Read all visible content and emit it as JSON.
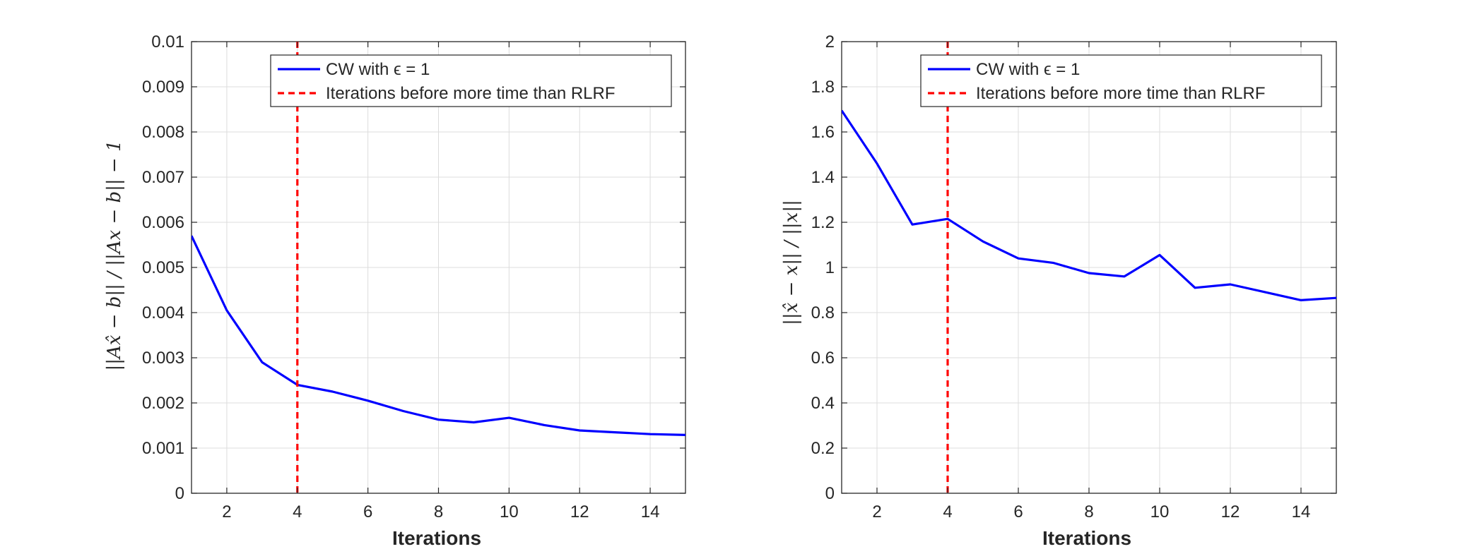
{
  "chart_data": [
    {
      "type": "line",
      "xlabel": "Iterations",
      "ylabel": "||Ax̂ − b|| / ||Ax − b|| − 1",
      "xlim": [
        1,
        15
      ],
      "ylim": [
        0,
        0.01
      ],
      "xticks": [
        2,
        4,
        6,
        8,
        10,
        12,
        14
      ],
      "yticks": [
        0,
        0.001,
        0.002,
        0.003,
        0.004,
        0.005,
        0.006,
        0.007,
        0.008,
        0.009,
        0.01
      ],
      "ytick_labels": [
        "0",
        "0.001",
        "0.002",
        "0.003",
        "0.004",
        "0.005",
        "0.006",
        "0.007",
        "0.008",
        "0.009",
        "0.01"
      ],
      "grid": true,
      "legend_position": "top-right",
      "series": [
        {
          "name": "CW with ϵ = 1",
          "color": "#0000ff",
          "style": "solid",
          "x": [
            1,
            2,
            3,
            4,
            5,
            6,
            7,
            8,
            9,
            10,
            11,
            12,
            13,
            14,
            15
          ],
          "y": [
            0.0057,
            0.00405,
            0.0029,
            0.0024,
            0.00225,
            0.00205,
            0.00182,
            0.00163,
            0.00157,
            0.00167,
            0.00151,
            0.00139,
            0.00135,
            0.00131,
            0.00129
          ]
        }
      ],
      "vlines": [
        {
          "name": "Iterations before more time than RLRF",
          "x": 4,
          "color": "#ff0000",
          "style": "dashed"
        }
      ]
    },
    {
      "type": "line",
      "xlabel": "Iterations",
      "ylabel": "||x̂ − x|| / ||x||",
      "xlim": [
        1,
        15
      ],
      "ylim": [
        0,
        2
      ],
      "xticks": [
        2,
        4,
        6,
        8,
        10,
        12,
        14
      ],
      "yticks": [
        0,
        0.2,
        0.4,
        0.6,
        0.8,
        1,
        1.2,
        1.4,
        1.6,
        1.8,
        2
      ],
      "ytick_labels": [
        "0",
        "0.2",
        "0.4",
        "0.6",
        "0.8",
        "1",
        "1.2",
        "1.4",
        "1.6",
        "1.8",
        "2"
      ],
      "grid": true,
      "legend_position": "top-right",
      "series": [
        {
          "name": "CW with ϵ = 1",
          "color": "#0000ff",
          "style": "solid",
          "x": [
            1,
            2,
            3,
            4,
            5,
            6,
            7,
            8,
            9,
            10,
            11,
            12,
            13,
            14,
            15
          ],
          "y": [
            1.695,
            1.46,
            1.19,
            1.215,
            1.115,
            1.04,
            1.02,
            0.975,
            0.96,
            1.055,
            0.91,
            0.925,
            0.89,
            0.855,
            0.865
          ]
        }
      ],
      "vlines": [
        {
          "name": "Iterations before more time than RLRF",
          "x": 4,
          "color": "#ff0000",
          "style": "dashed"
        }
      ]
    }
  ]
}
